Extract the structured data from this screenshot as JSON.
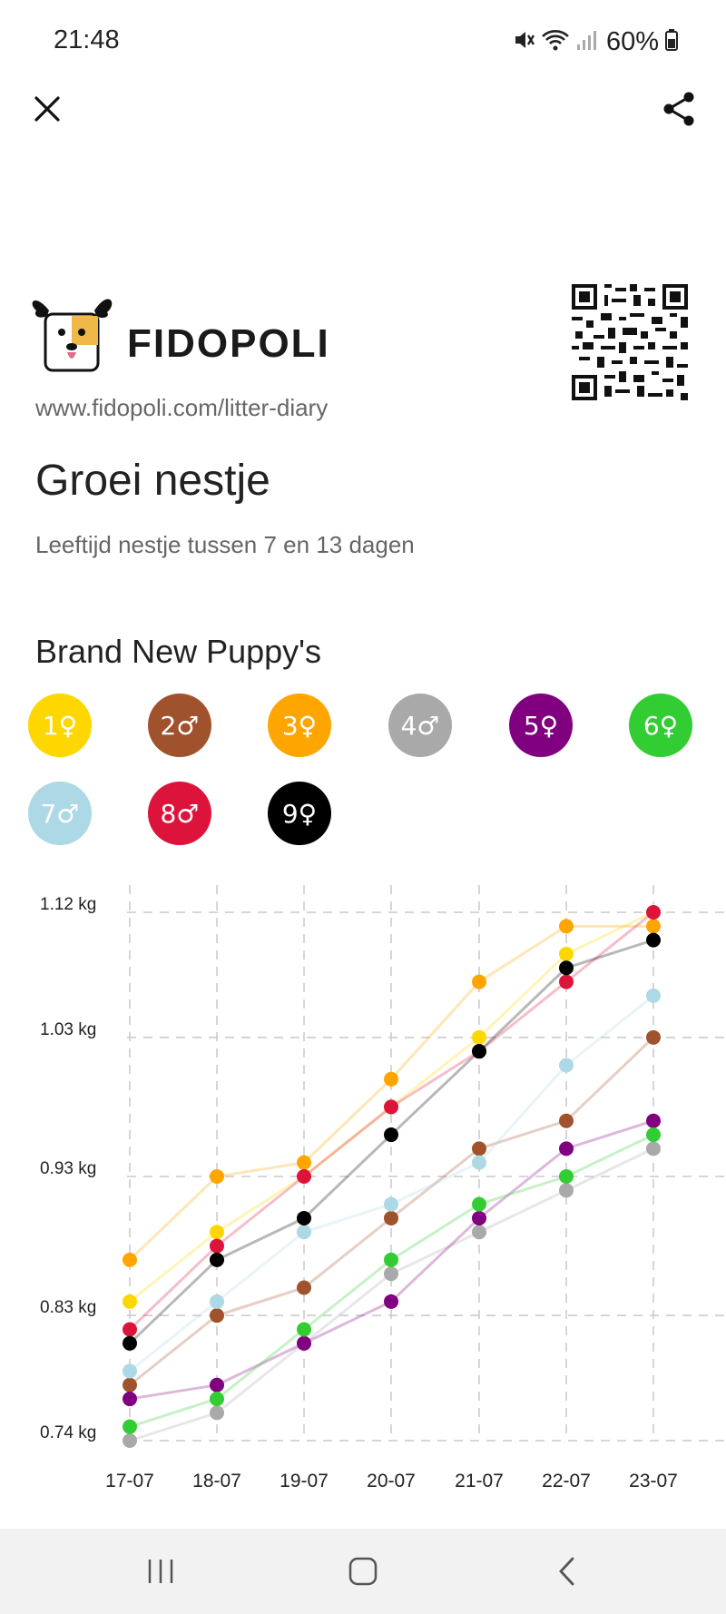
{
  "status_bar": {
    "time": "21:48",
    "battery": "60%",
    "icons": [
      "mute-icon",
      "wifi-icon",
      "signal-icon",
      "battery-icon"
    ]
  },
  "top_bar": {
    "close_icon": "close-icon",
    "share_icon": "share-icon"
  },
  "brand": {
    "name": "FIDOPOLI",
    "url": "www.fidopoli.com/litter-diary"
  },
  "page": {
    "title": "Groei nestje",
    "subtitle": "Leeftijd nestje tussen 7 en 13 dagen",
    "litter_name": "Brand New Puppy's"
  },
  "puppies": [
    {
      "label": "1♀",
      "color": "#FFD700"
    },
    {
      "label": "2♂",
      "color": "#A0522D"
    },
    {
      "label": "3♀",
      "color": "#FFA500"
    },
    {
      "label": "4♂",
      "color": "#A9A9A9"
    },
    {
      "label": "5♀",
      "color": "#800080"
    },
    {
      "label": "6♀",
      "color": "#32CD32"
    },
    {
      "label": "7♂",
      "color": "#ADD8E6"
    },
    {
      "label": "8♂",
      "color": "#DC143C"
    },
    {
      "label": "9♀",
      "color": "#000000"
    }
  ],
  "chart_data": {
    "type": "line",
    "x": [
      "17-07",
      "18-07",
      "19-07",
      "20-07",
      "21-07",
      "22-07",
      "23-07"
    ],
    "y_ticks": [
      "1.12 kg",
      "1.03 kg",
      "0.93 kg",
      "0.83 kg",
      "0.74 kg"
    ],
    "ylim": [
      0.74,
      1.12
    ],
    "grid": true,
    "series": [
      {
        "name": "1♀",
        "color": "#FFD700",
        "values": [
          0.84,
          0.89,
          0.93,
          0.98,
          1.03,
          1.09,
          1.12
        ]
      },
      {
        "name": "2♂",
        "color": "#A0522D",
        "values": [
          0.78,
          0.83,
          0.85,
          0.9,
          0.95,
          0.97,
          1.03
        ]
      },
      {
        "name": "3♀",
        "color": "#FFA500",
        "values": [
          0.87,
          0.93,
          0.94,
          1.0,
          1.07,
          1.11,
          1.11
        ]
      },
      {
        "name": "4♂",
        "color": "#A9A9A9",
        "values": [
          0.74,
          0.76,
          0.81,
          0.86,
          0.89,
          0.92,
          0.95
        ]
      },
      {
        "name": "5♀",
        "color": "#800080",
        "values": [
          0.77,
          0.78,
          0.81,
          0.84,
          0.9,
          0.95,
          0.97
        ]
      },
      {
        "name": "6♀",
        "color": "#32CD32",
        "values": [
          0.75,
          0.77,
          0.82,
          0.87,
          0.91,
          0.93,
          0.96
        ]
      },
      {
        "name": "7♂",
        "color": "#ADD8E6",
        "values": [
          0.79,
          0.84,
          0.89,
          0.91,
          0.94,
          1.01,
          1.06
        ]
      },
      {
        "name": "8♂",
        "color": "#DC143C",
        "values": [
          0.82,
          0.88,
          0.93,
          0.98,
          1.02,
          1.07,
          1.12
        ]
      },
      {
        "name": "9♀",
        "color": "#000000",
        "values": [
          0.81,
          0.87,
          0.9,
          0.96,
          1.02,
          1.08,
          1.1
        ]
      }
    ]
  }
}
